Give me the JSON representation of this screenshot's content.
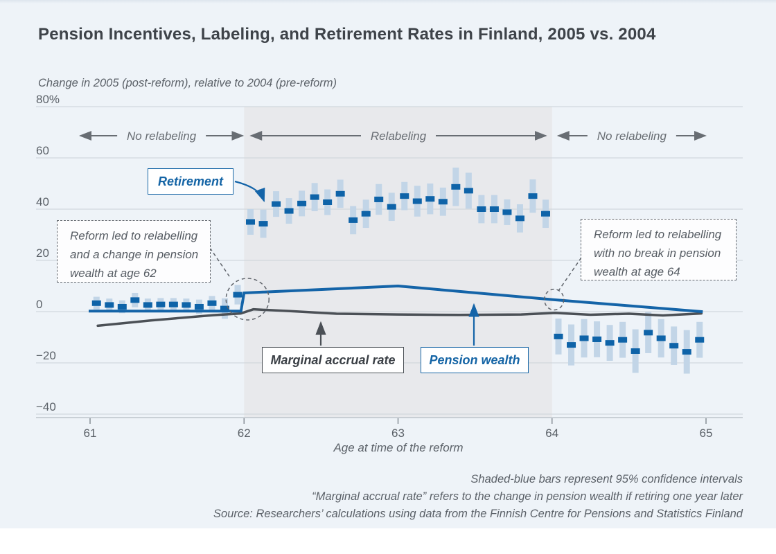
{
  "colors": {
    "background": "#eef3f8",
    "region_shade": "#e8e9ec",
    "scatter": "#0e63a8",
    "ci_bar": "#c2d5e7",
    "pension_line": "#1464a8",
    "accrual_line": "#4b5056",
    "gridline": "#cbd2d9",
    "axis_line": "#b3bac2",
    "tick": "#878e96",
    "text": "#5b6168",
    "title": "#3e4349",
    "accent_blue": "#1464a5",
    "annotation": "#5f646b",
    "arrow": "#686d73"
  },
  "labels": {
    "retirement": "Retirement",
    "marginal_accrual": "Marginal accrual rate",
    "pension_wealth": "Pension wealth"
  },
  "annotations": {
    "age62": "Reform led to relabelling\nand a change in pension\nwealth at age 62",
    "age64": "Reform led to relabelling\nwith no break in pension\nwealth at age 64"
  },
  "footnotes": [
    "Shaded-blue bars represent 95% confidence intervals",
    "“Marginal accrual rate” refers to the change in pension wealth if retiring one year later",
    "Source: Researchers’ calculations using data from the Finnish Centre for Pensions and Statistics Finland"
  ],
  "chart_data": {
    "type": "scatter",
    "title": "Pension Incentives, Labeling, and Retirement Rates in Finland, 2005 vs. 2004",
    "y_axis_caption": "Change in 2005 (post-reform), relative to 2004 (pre-reform)",
    "xlabel": "Age at time of the reform",
    "xlim": [
      61,
      65
    ],
    "ylim": [
      -40,
      80
    ],
    "x_ticks": [
      61,
      62,
      63,
      64,
      65
    ],
    "y_ticks": [
      {
        "v": 80,
        "label": "80%"
      },
      {
        "v": 60,
        "label": "60"
      },
      {
        "v": 40,
        "label": "40"
      },
      {
        "v": 20,
        "label": "20"
      },
      {
        "v": 0,
        "label": "0"
      },
      {
        "v": -20,
        "label": "−20"
      },
      {
        "v": -40,
        "label": "−40"
      }
    ],
    "grid": true,
    "relabeling_region": [
      62,
      64
    ],
    "zones": [
      {
        "label": "No relabeling",
        "from": 61,
        "to": 62
      },
      {
        "label": "Relabeling",
        "from": 62,
        "to": 64
      },
      {
        "label": "No relabeling",
        "from": 64,
        "to": 65
      }
    ],
    "series": [
      {
        "name": "Retirement",
        "type": "scatter_ci",
        "start_age": 61,
        "interval_months": 1,
        "values": [
          3.3,
          2.6,
          1.9,
          4.5,
          2.6,
          2.8,
          2.8,
          2.6,
          1.9,
          3.3,
          1.2,
          6.6,
          35.0,
          34.3,
          42.0,
          39.3,
          42.2,
          44.7,
          42.7,
          46.0,
          35.7,
          38.2,
          43.8,
          40.9,
          45.1,
          43.1,
          44.0,
          42.9,
          48.7,
          47.2,
          40.0,
          40.0,
          38.8,
          36.4,
          45.1,
          38.2,
          -9.7,
          -13.0,
          -10.4,
          -10.8,
          -12.2,
          -11.0,
          -15.4,
          -8.2,
          -10.4,
          -13.3,
          -15.7,
          -11.0
        ],
        "ci_halfwidth": [
          2.5,
          2.5,
          2.5,
          2.8,
          2.5,
          2.5,
          2.5,
          2.5,
          2.8,
          2.8,
          4.0,
          3.8,
          5.0,
          5.5,
          5.0,
          5.0,
          5.0,
          5.5,
          5.0,
          5.5,
          5.5,
          5.5,
          6.0,
          5.5,
          5.5,
          6.0,
          6.0,
          5.5,
          7.5,
          7.0,
          5.5,
          5.5,
          5.0,
          5.5,
          6.5,
          5.5,
          7.0,
          8.0,
          7.5,
          7.0,
          7.0,
          7.0,
          8.5,
          8.0,
          7.5,
          7.5,
          8.5,
          7.0
        ]
      },
      {
        "name": "Pension wealth",
        "type": "line",
        "points": [
          [
            61.0,
            0.2
          ],
          [
            61.98,
            0.2
          ],
          [
            62.0,
            7.3
          ],
          [
            63.0,
            10.0
          ],
          [
            64.0,
            4.7
          ],
          [
            64.97,
            0.0
          ]
        ]
      },
      {
        "name": "Marginal accrual rate",
        "type": "line",
        "points": [
          [
            61.05,
            -5.5
          ],
          [
            61.4,
            -3.4
          ],
          [
            61.8,
            -1.4
          ],
          [
            61.98,
            -0.7
          ],
          [
            62.06,
            0.9
          ],
          [
            62.3,
            0.2
          ],
          [
            62.6,
            -0.8
          ],
          [
            63.0,
            -1.1
          ],
          [
            63.4,
            -1.3
          ],
          [
            63.8,
            -1.1
          ],
          [
            64.02,
            -0.5
          ],
          [
            64.25,
            -1.2
          ],
          [
            64.5,
            -0.8
          ],
          [
            64.72,
            -1.5
          ],
          [
            64.97,
            -0.7
          ]
        ]
      }
    ]
  }
}
